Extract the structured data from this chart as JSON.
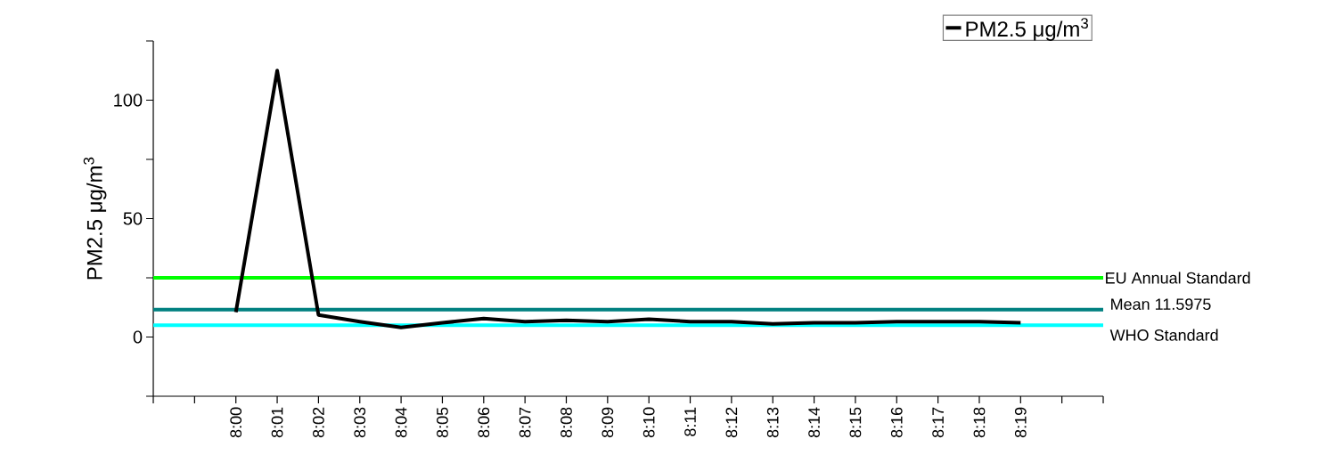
{
  "chart_data": {
    "type": "line",
    "ylabel": "PM2.5 μg/m$^{3}$",
    "x": [
      8,
      8.016667,
      8.033333,
      8.05,
      8.066667,
      8.083333,
      8.1,
      8.116667,
      8.133333,
      8.15,
      8.166667,
      8.183333,
      8.2,
      8.216667,
      8.233333,
      8.25,
      8.266667,
      8.283333,
      8.3,
      8.316667
    ],
    "series": [
      {
        "name": "PM2.5 μg/m$^{3}$",
        "color": "#000000",
        "values": [
          10.5,
          112.5,
          9.3,
          6.5,
          4,
          6,
          7.8,
          6.5,
          7,
          6.5,
          7.5,
          6.5,
          6.5,
          5.5,
          6,
          6,
          6.5,
          6.5,
          6.5,
          6
        ]
      }
    ],
    "xlim": [
      7.966667,
      8.35
    ],
    "xticks": [
      {
        "value": 7.966667,
        "label": null
      },
      {
        "value": 7.983333,
        "label": null
      },
      {
        "value": 8,
        "label": "8:00"
      },
      {
        "value": 8.016667,
        "label": "8:01"
      },
      {
        "value": 8.033333,
        "label": "8:02"
      },
      {
        "value": 8.05,
        "label": "8:03"
      },
      {
        "value": 8.066667,
        "label": "8:04"
      },
      {
        "value": 8.083333,
        "label": "8:05"
      },
      {
        "value": 8.1,
        "label": "8:06"
      },
      {
        "value": 8.116667,
        "label": "8:07"
      },
      {
        "value": 8.133333,
        "label": "8:08"
      },
      {
        "value": 8.15,
        "label": "8:09"
      },
      {
        "value": 8.166667,
        "label": "8:10"
      },
      {
        "value": 8.183333,
        "label": "8:11"
      },
      {
        "value": 8.2,
        "label": "8:12"
      },
      {
        "value": 8.216667,
        "label": "8:13"
      },
      {
        "value": 8.233333,
        "label": "8:14"
      },
      {
        "value": 8.25,
        "label": "8:15"
      },
      {
        "value": 8.266667,
        "label": "8:16"
      },
      {
        "value": 8.283333,
        "label": "8:17"
      },
      {
        "value": 8.3,
        "label": "8:18"
      },
      {
        "value": 8.316667,
        "label": "8:19"
      },
      {
        "value": 8.333333,
        "label": null
      },
      {
        "value": 8.35,
        "label": null
      }
    ],
    "ylim": [
      -25,
      125
    ],
    "yticks": [
      {
        "value": -25,
        "label": null
      },
      0,
      {
        "value": 25,
        "label": null
      },
      50,
      {
        "value": 75,
        "label": null
      },
      100,
      {
        "value": 125,
        "label": null
      }
    ],
    "ref_lines": [
      {
        "axis": "y",
        "value": 25,
        "label": "EU Annual Standard",
        "color": "#00ff00"
      },
      {
        "axis": "y",
        "value": 11.5975,
        "label": "Mean 11.5975",
        "color": "#008080"
      },
      {
        "axis": "y",
        "value": 5,
        "label": "WHO Standard",
        "color": "#00ffff"
      }
    ],
    "legend": "top right"
  }
}
